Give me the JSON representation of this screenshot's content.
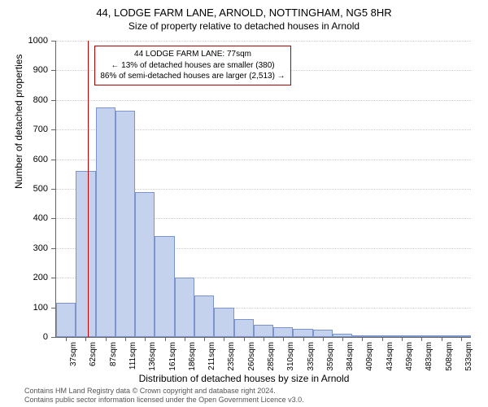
{
  "title": "44, LODGE FARM LANE, ARNOLD, NOTTINGHAM, NG5 8HR",
  "subtitle": "Size of property relative to detached houses in Arnold",
  "y_axis_title": "Number of detached properties",
  "x_axis_title": "Distribution of detached houses by size in Arnold",
  "chart": {
    "type": "histogram",
    "ylim": [
      0,
      1000
    ],
    "ytick_step": 100,
    "bar_fill": "#c4d2ee",
    "bar_border": "#7b94c9",
    "background_color": "#ffffff",
    "grid_color": "#cccccc",
    "bars": [
      {
        "label": "37sqm",
        "value": 115
      },
      {
        "label": "62sqm",
        "value": 560
      },
      {
        "label": "87sqm",
        "value": 775
      },
      {
        "label": "111sqm",
        "value": 765
      },
      {
        "label": "136sqm",
        "value": 490
      },
      {
        "label": "161sqm",
        "value": 340
      },
      {
        "label": "186sqm",
        "value": 200
      },
      {
        "label": "211sqm",
        "value": 140
      },
      {
        "label": "235sqm",
        "value": 100
      },
      {
        "label": "260sqm",
        "value": 60
      },
      {
        "label": "285sqm",
        "value": 40
      },
      {
        "label": "310sqm",
        "value": 32
      },
      {
        "label": "335sqm",
        "value": 28
      },
      {
        "label": "359sqm",
        "value": 24
      },
      {
        "label": "384sqm",
        "value": 10
      },
      {
        "label": "409sqm",
        "value": 5
      },
      {
        "label": "434sqm",
        "value": 4
      },
      {
        "label": "459sqm",
        "value": 3
      },
      {
        "label": "483sqm",
        "value": 2
      },
      {
        "label": "508sqm",
        "value": 2
      },
      {
        "label": "533sqm",
        "value": 1
      }
    ],
    "marker": {
      "bin_index": 1,
      "fraction_in_bin": 0.62,
      "color": "#cc0000"
    },
    "annotation": {
      "line1": "44 LODGE FARM LANE: 77sqm",
      "line2": "← 13% of detached houses are smaller (380)",
      "line3": "86% of semi-detached houses are larger (2,513) →",
      "border_color": "#b00000"
    }
  },
  "footer": {
    "line1": "Contains HM Land Registry data © Crown copyright and database right 2024.",
    "line2": "Contains public sector information licensed under the Open Government Licence v3.0."
  }
}
